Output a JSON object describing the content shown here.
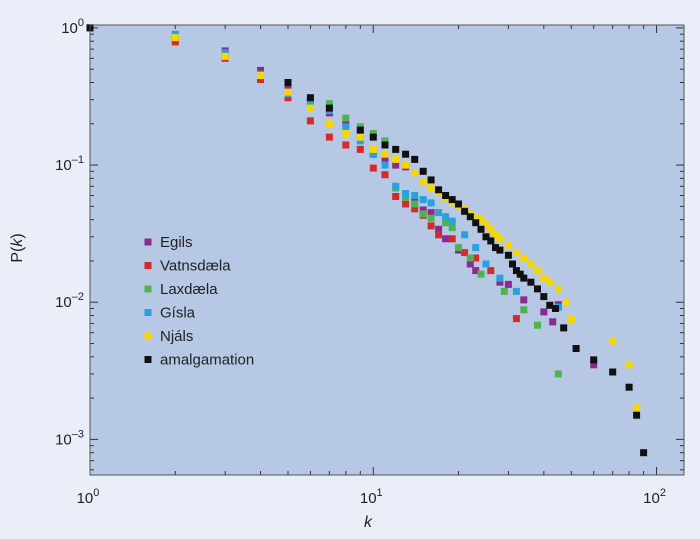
{
  "chart_data": {
    "type": "scatter",
    "xlabel": "k",
    "ylabel": "P(k)",
    "xscale": "log",
    "yscale": "log",
    "xlim": [
      1,
      125
    ],
    "ylim": [
      0.00055,
      1.05
    ],
    "x_ticks": [
      {
        "value": 1,
        "label": "10",
        "exp": "0"
      },
      {
        "value": 10,
        "label": "10",
        "exp": "1"
      },
      {
        "value": 100,
        "label": "10",
        "exp": "2"
      }
    ],
    "y_ticks": [
      {
        "value": 1,
        "label": "10",
        "exp": "0"
      },
      {
        "value": 0.1,
        "label": "10",
        "exp": "–1"
      },
      {
        "value": 0.01,
        "label": "10",
        "exp": "–2"
      },
      {
        "value": 0.001,
        "label": "10",
        "exp": "–3"
      }
    ],
    "grid": false,
    "legend_position": "left-middle",
    "series": [
      {
        "name": "Egils",
        "color": "#8b2a8f",
        "points": [
          [
            1,
            1.0
          ],
          [
            2,
            0.82
          ],
          [
            3,
            0.68
          ],
          [
            4,
            0.49
          ],
          [
            5,
            0.37
          ],
          [
            6,
            0.29
          ],
          [
            7,
            0.24
          ],
          [
            8,
            0.2
          ],
          [
            9,
            0.17
          ],
          [
            10,
            0.12
          ],
          [
            11,
            0.11
          ],
          [
            12,
            0.1
          ],
          [
            13,
            0.097
          ],
          [
            14,
            0.055
          ],
          [
            15,
            0.047
          ],
          [
            16,
            0.045
          ],
          [
            17,
            0.034
          ],
          [
            18,
            0.029
          ],
          [
            20,
            0.024
          ],
          [
            22,
            0.019
          ],
          [
            23,
            0.017
          ],
          [
            28,
            0.014
          ],
          [
            30,
            0.0135
          ],
          [
            34,
            0.0104
          ],
          [
            40,
            0.0085
          ],
          [
            43,
            0.0072
          ],
          [
            45,
            0.0096
          ],
          [
            60,
            0.0035
          ]
        ]
      },
      {
        "name": "Vatnsdæla",
        "color": "#d42a2a",
        "points": [
          [
            1,
            1.0
          ],
          [
            2,
            0.79
          ],
          [
            3,
            0.6
          ],
          [
            4,
            0.42
          ],
          [
            5,
            0.31
          ],
          [
            6,
            0.21
          ],
          [
            7,
            0.16
          ],
          [
            8,
            0.14
          ],
          [
            9,
            0.13
          ],
          [
            10,
            0.095
          ],
          [
            11,
            0.085
          ],
          [
            12,
            0.059
          ],
          [
            13,
            0.052
          ],
          [
            14,
            0.048
          ],
          [
            15,
            0.043
          ],
          [
            16,
            0.036
          ],
          [
            17,
            0.031
          ],
          [
            19,
            0.029
          ],
          [
            21,
            0.023
          ],
          [
            23,
            0.021
          ],
          [
            26,
            0.017
          ],
          [
            32,
            0.0076
          ]
        ]
      },
      {
        "name": "Laxdæla",
        "color": "#4fb34f",
        "points": [
          [
            1,
            1.0
          ],
          [
            2,
            0.86
          ],
          [
            3,
            0.64
          ],
          [
            4,
            0.46
          ],
          [
            5,
            0.34
          ],
          [
            6,
            0.28
          ],
          [
            7,
            0.28
          ],
          [
            8,
            0.22
          ],
          [
            9,
            0.19
          ],
          [
            10,
            0.17
          ],
          [
            11,
            0.15
          ],
          [
            12,
            0.068
          ],
          [
            13,
            0.058
          ],
          [
            14,
            0.052
          ],
          [
            15,
            0.044
          ],
          [
            16,
            0.041
          ],
          [
            18,
            0.038
          ],
          [
            19,
            0.035
          ],
          [
            20,
            0.025
          ],
          [
            22,
            0.021
          ],
          [
            24,
            0.016
          ],
          [
            29,
            0.012
          ],
          [
            34,
            0.0088
          ],
          [
            38,
            0.0068
          ],
          [
            45,
            0.003
          ]
        ]
      },
      {
        "name": "Gísla",
        "color": "#2aa1de",
        "points": [
          [
            1,
            1.0
          ],
          [
            2,
            0.9
          ],
          [
            3,
            0.66
          ],
          [
            4,
            0.45
          ],
          [
            5,
            0.33
          ],
          [
            6,
            0.3
          ],
          [
            7,
            0.25
          ],
          [
            8,
            0.19
          ],
          [
            9,
            0.15
          ],
          [
            10,
            0.12
          ],
          [
            11,
            0.1
          ],
          [
            12,
            0.07
          ],
          [
            13,
            0.062
          ],
          [
            14,
            0.06
          ],
          [
            15,
            0.056
          ],
          [
            16,
            0.053
          ],
          [
            17,
            0.045
          ],
          [
            18,
            0.042
          ],
          [
            19,
            0.039
          ],
          [
            21,
            0.031
          ],
          [
            23,
            0.025
          ],
          [
            25,
            0.019
          ],
          [
            28,
            0.015
          ],
          [
            32,
            0.012
          ],
          [
            45,
            0.0092
          ]
        ]
      },
      {
        "name": "Njáls",
        "color": "#f5d800",
        "points": [
          [
            1,
            1.0
          ],
          [
            2,
            0.85
          ],
          [
            3,
            0.62
          ],
          [
            4,
            0.45
          ],
          [
            5,
            0.34
          ],
          [
            6,
            0.26
          ],
          [
            7,
            0.2
          ],
          [
            8,
            0.17
          ],
          [
            9,
            0.16
          ],
          [
            10,
            0.13
          ],
          [
            11,
            0.12
          ],
          [
            12,
            0.11
          ],
          [
            13,
            0.1
          ],
          [
            14,
            0.088
          ],
          [
            15,
            0.075
          ],
          [
            16,
            0.068
          ],
          [
            17,
            0.063
          ],
          [
            18,
            0.058
          ],
          [
            19,
            0.054
          ],
          [
            20,
            0.05
          ],
          [
            21,
            0.048
          ],
          [
            22,
            0.044
          ],
          [
            23,
            0.041
          ],
          [
            24,
            0.04
          ],
          [
            25,
            0.037
          ],
          [
            26,
            0.034
          ],
          [
            27,
            0.031
          ],
          [
            28,
            0.029
          ],
          [
            30,
            0.026
          ],
          [
            32,
            0.023
          ],
          [
            34,
            0.021
          ],
          [
            36,
            0.019
          ],
          [
            38,
            0.017
          ],
          [
            40,
            0.015
          ],
          [
            42,
            0.014
          ],
          [
            45,
            0.0125
          ],
          [
            48,
            0.01
          ],
          [
            50,
            0.0075
          ],
          [
            70,
            0.0052
          ],
          [
            80,
            0.0035
          ],
          [
            85,
            0.0017
          ]
        ]
      },
      {
        "name": "amalgamation",
        "color": "#111111",
        "points": [
          [
            1,
            1.0
          ],
          [
            5,
            0.4
          ],
          [
            6,
            0.31
          ],
          [
            7,
            0.26
          ],
          [
            9,
            0.18
          ],
          [
            10,
            0.16
          ],
          [
            11,
            0.14
          ],
          [
            12,
            0.13
          ],
          [
            13,
            0.12
          ],
          [
            14,
            0.11
          ],
          [
            15,
            0.09
          ],
          [
            16,
            0.078
          ],
          [
            17,
            0.066
          ],
          [
            18,
            0.06
          ],
          [
            19,
            0.056
          ],
          [
            20,
            0.052
          ],
          [
            21,
            0.046
          ],
          [
            22,
            0.042
          ],
          [
            23,
            0.038
          ],
          [
            24,
            0.034
          ],
          [
            25,
            0.03
          ],
          [
            26,
            0.028
          ],
          [
            27,
            0.025
          ],
          [
            28,
            0.024
          ],
          [
            30,
            0.022
          ],
          [
            31,
            0.019
          ],
          [
            32,
            0.017
          ],
          [
            33,
            0.016
          ],
          [
            34,
            0.015
          ],
          [
            36,
            0.014
          ],
          [
            38,
            0.0125
          ],
          [
            40,
            0.011
          ],
          [
            42,
            0.0095
          ],
          [
            44,
            0.009
          ],
          [
            47,
            0.0065
          ],
          [
            52,
            0.0046
          ],
          [
            60,
            0.0038
          ],
          [
            70,
            0.0031
          ],
          [
            80,
            0.0024
          ],
          [
            85,
            0.0015
          ],
          [
            90,
            0.0008
          ]
        ]
      }
    ]
  }
}
